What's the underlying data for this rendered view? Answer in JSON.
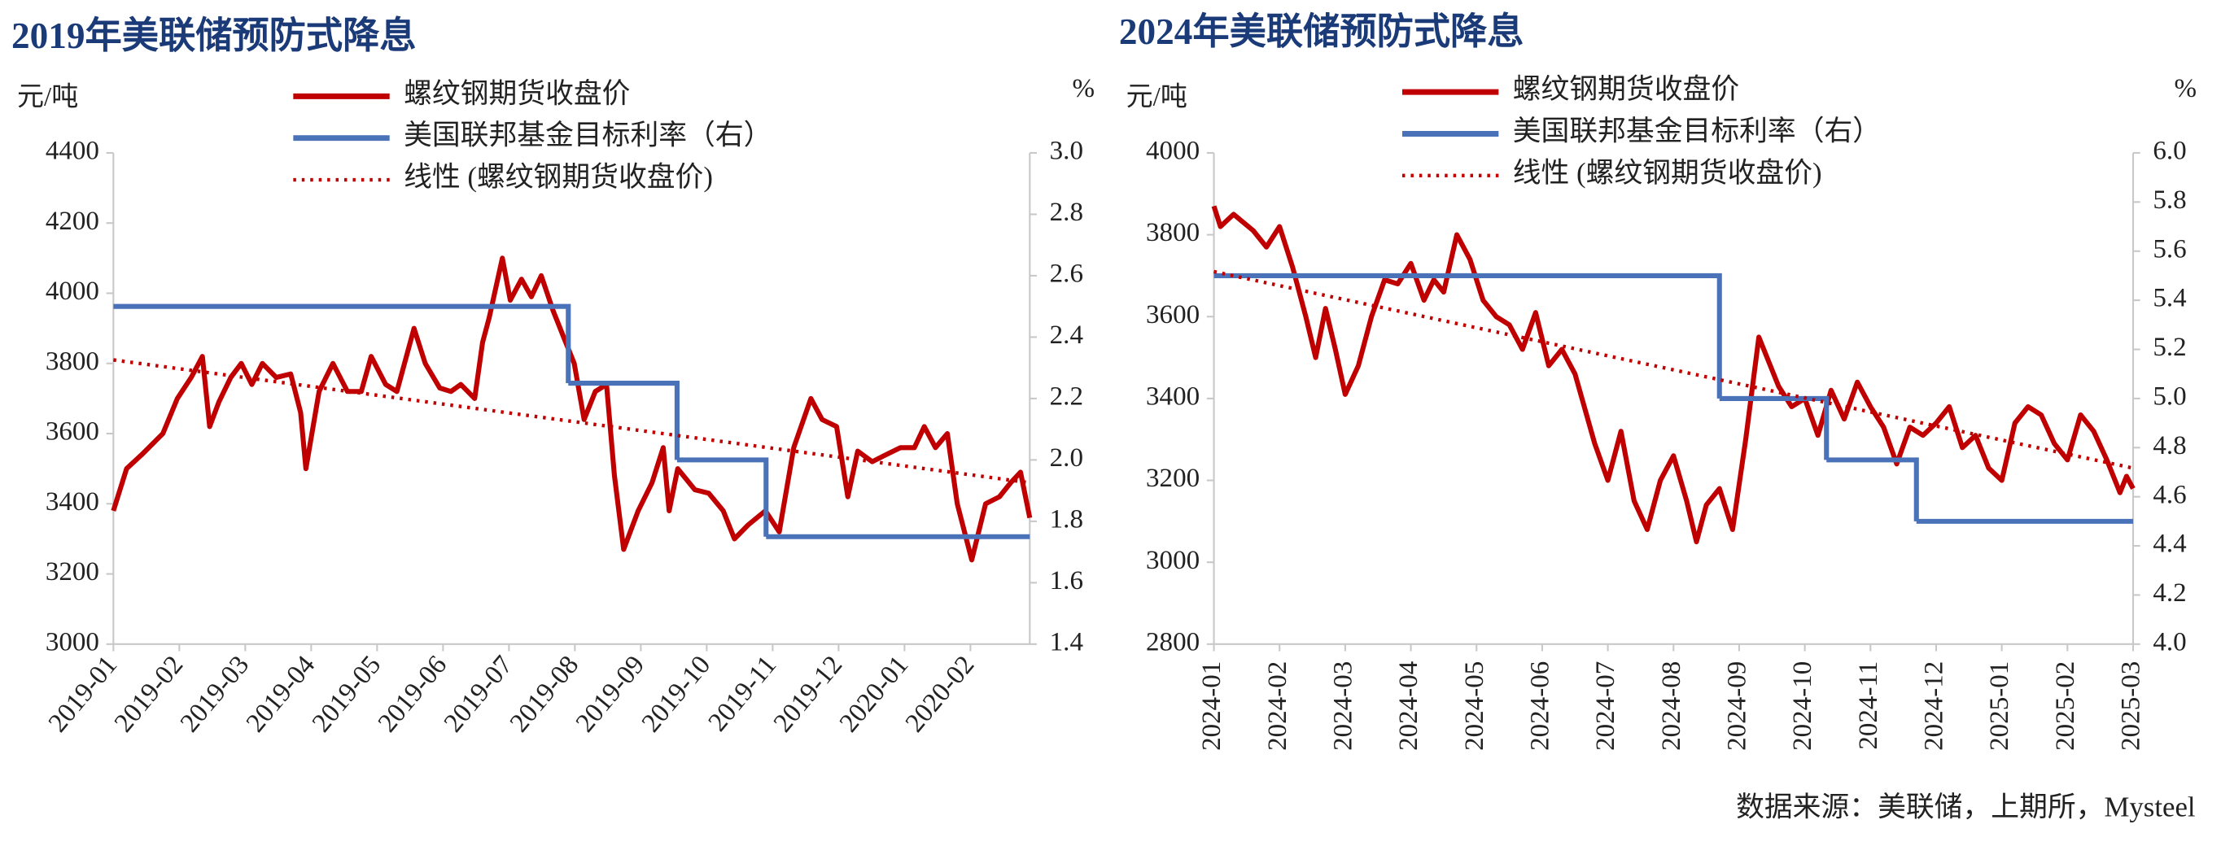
{
  "chart_data": [
    {
      "type": "line",
      "title": "2019年美联储预防式降息",
      "y_label": "元/吨",
      "y2_label": "%",
      "xtick_rotation": -50,
      "xlim": [
        0,
        13.9
      ],
      "xticks": [
        {
          "value": 0,
          "label": "2019-01"
        },
        {
          "value": 1,
          "label": "2019-02"
        },
        {
          "value": 2,
          "label": "2019-03"
        },
        {
          "value": 3,
          "label": "2019-04"
        },
        {
          "value": 4,
          "label": "2019-05"
        },
        {
          "value": 5,
          "label": "2019-06"
        },
        {
          "value": 6,
          "label": "2019-07"
        },
        {
          "value": 7,
          "label": "2019-08"
        },
        {
          "value": 8,
          "label": "2019-09"
        },
        {
          "value": 9,
          "label": "2019-10"
        },
        {
          "value": 10,
          "label": "2019-11"
        },
        {
          "value": 11,
          "label": "2019-12"
        },
        {
          "value": 12,
          "label": "2020-01"
        },
        {
          "value": 13,
          "label": "2020-02"
        }
      ],
      "ylim": [
        3000,
        4400
      ],
      "yticks": [
        3000,
        3200,
        3400,
        3600,
        3800,
        4000,
        4200,
        4400
      ],
      "y2lim": [
        1.4,
        3.0
      ],
      "y2ticks": [
        1.4,
        1.6,
        1.8,
        {
          "value": 2,
          "label": "2.0"
        },
        2.2,
        2.4,
        2.6,
        2.8,
        {
          "value": 3,
          "label": "3.0"
        }
      ],
      "series": [
        {
          "name": "螺纹钢期货收盘价",
          "color": "#c00000",
          "x": [
            0,
            0.2,
            0.43,
            0.75,
            0.97,
            1.18,
            1.35,
            1.46,
            1.6,
            1.78,
            1.94,
            2.1,
            2.26,
            2.47,
            2.69,
            2.84,
            2.92,
            3.12,
            3.33,
            3.55,
            3.76,
            3.91,
            4.13,
            4.3,
            4.56,
            4.73,
            4.95,
            5.12,
            5.27,
            5.48,
            5.6,
            5.7,
            5.9,
            6.02,
            6.19,
            6.34,
            6.49,
            6.67,
            6.84,
            6.99,
            7.14,
            7.31,
            7.48,
            7.6,
            7.74,
            7.96,
            8.17,
            8.34,
            8.43,
            8.56,
            8.82,
            9.03,
            9.25,
            9.42,
            9.63,
            9.89,
            10.1,
            10.32,
            10.58,
            10.75,
            10.97,
            11.14,
            11.29,
            11.51,
            11.72,
            11.94,
            12.15,
            12.3,
            12.47,
            12.65,
            12.8,
            13.02,
            13.23,
            13.44,
            13.61,
            13.76,
            13.9
          ],
          "values": [
            3380,
            3500,
            3540,
            3600,
            3700,
            3760,
            3820,
            3620,
            3690,
            3760,
            3800,
            3740,
            3800,
            3760,
            3770,
            3660,
            3500,
            3720,
            3800,
            3720,
            3720,
            3820,
            3740,
            3720,
            3900,
            3800,
            3730,
            3720,
            3740,
            3700,
            3860,
            3930,
            4100,
            3980,
            4040,
            3990,
            4050,
            3950,
            3870,
            3800,
            3640,
            3720,
            3740,
            3480,
            3270,
            3380,
            3460,
            3560,
            3380,
            3500,
            3440,
            3430,
            3380,
            3300,
            3340,
            3380,
            3320,
            3560,
            3700,
            3640,
            3620,
            3420,
            3550,
            3520,
            3540,
            3560,
            3560,
            3620,
            3560,
            3600,
            3400,
            3240,
            3400,
            3420,
            3460,
            3490,
            3360
          ]
        },
        {
          "name": "美国联邦基金目标利率（右）",
          "color": "#4a72b8",
          "axis": "y2",
          "step": true,
          "x": [
            0,
            6.9,
            8.55,
            9.9
          ],
          "values": [
            2.5,
            2.25,
            2.0,
            1.75
          ]
        },
        {
          "name": "线性 (螺纹钢期货收盘价)",
          "color": "#c00000",
          "dashed": true,
          "x": [
            0,
            13.9
          ],
          "values": [
            3810,
            3460
          ]
        }
      ]
    },
    {
      "type": "line",
      "title": "2024年美联储预防式降息",
      "y_label": "元/吨",
      "y2_label": "%",
      "xtick_rotation": -90,
      "xlim": [
        0,
        14
      ],
      "xticks": [
        {
          "value": 0,
          "label": "2024-01"
        },
        {
          "value": 1,
          "label": "2024-02"
        },
        {
          "value": 2,
          "label": "2024-03"
        },
        {
          "value": 3,
          "label": "2024-04"
        },
        {
          "value": 4,
          "label": "2024-05"
        },
        {
          "value": 5,
          "label": "2024-06"
        },
        {
          "value": 6,
          "label": "2024-07"
        },
        {
          "value": 7,
          "label": "2024-08"
        },
        {
          "value": 8,
          "label": "2024-09"
        },
        {
          "value": 9,
          "label": "2024-10"
        },
        {
          "value": 10,
          "label": "2024-11"
        },
        {
          "value": 11,
          "label": "2024-12"
        },
        {
          "value": 12,
          "label": "2025-01"
        },
        {
          "value": 13,
          "label": "2025-02"
        },
        {
          "value": 14,
          "label": "2025-03"
        }
      ],
      "ylim": [
        2800,
        4000
      ],
      "yticks": [
        2800,
        3000,
        3200,
        3400,
        3600,
        3800,
        4000
      ],
      "y2lim": [
        4.0,
        6.0
      ],
      "y2ticks": [
        {
          "value": 4,
          "label": "4.0"
        },
        4.2,
        4.4,
        4.6,
        4.8,
        {
          "value": 5,
          "label": "5.0"
        },
        5.2,
        5.4,
        5.6,
        5.8,
        {
          "value": 6,
          "label": "6.0"
        }
      ],
      "series": [
        {
          "name": "螺纹钢期货收盘价",
          "color": "#c00000",
          "x": [
            0,
            0.1,
            0.3,
            0.6,
            0.8,
            1.0,
            1.2,
            1.4,
            1.55,
            1.7,
            1.85,
            2.0,
            2.2,
            2.4,
            2.6,
            2.8,
            3.0,
            3.2,
            3.35,
            3.5,
            3.7,
            3.9,
            4.1,
            4.3,
            4.5,
            4.7,
            4.9,
            5.1,
            5.3,
            5.5,
            5.8,
            6.0,
            6.2,
            6.4,
            6.6,
            6.8,
            7.0,
            7.2,
            7.35,
            7.5,
            7.7,
            7.9,
            8.1,
            8.3,
            8.6,
            8.8,
            9.0,
            9.2,
            9.4,
            9.6,
            9.8,
            10.0,
            10.2,
            10.4,
            10.6,
            10.8,
            11.0,
            11.2,
            11.4,
            11.6,
            11.8,
            12.0,
            12.2,
            12.4,
            12.6,
            12.8,
            13.0,
            13.2,
            13.4,
            13.6,
            13.8,
            13.9,
            14.0
          ],
          "values": [
            3870,
            3820,
            3850,
            3810,
            3770,
            3820,
            3720,
            3600,
            3500,
            3620,
            3520,
            3410,
            3480,
            3600,
            3690,
            3680,
            3730,
            3640,
            3690,
            3660,
            3800,
            3740,
            3640,
            3600,
            3580,
            3520,
            3610,
            3480,
            3520,
            3460,
            3290,
            3200,
            3320,
            3150,
            3080,
            3200,
            3260,
            3150,
            3050,
            3140,
            3180,
            3080,
            3300,
            3550,
            3430,
            3380,
            3400,
            3310,
            3420,
            3350,
            3440,
            3380,
            3330,
            3240,
            3330,
            3310,
            3340,
            3380,
            3280,
            3310,
            3230,
            3200,
            3340,
            3380,
            3360,
            3290,
            3250,
            3360,
            3320,
            3250,
            3170,
            3210,
            3180
          ]
        },
        {
          "name": "美国联邦基金目标利率（右）",
          "color": "#4a72b8",
          "axis": "y2",
          "step": true,
          "x": [
            0,
            7.7,
            9.33,
            10.7
          ],
          "values": [
            5.5,
            5.0,
            4.75,
            4.5
          ]
        },
        {
          "name": "线性 (螺纹钢期货收盘价)",
          "color": "#c00000",
          "dashed": true,
          "x": [
            0,
            14
          ],
          "values": [
            3710,
            3230
          ]
        }
      ]
    }
  ],
  "source": "数据来源：美联储，上期所，Mysteel"
}
